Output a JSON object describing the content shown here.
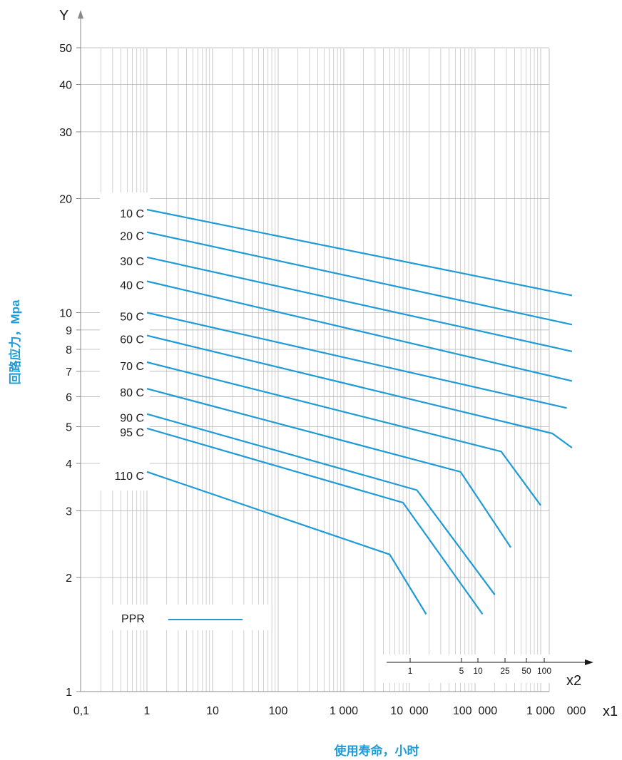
{
  "chart_data": {
    "type": "line",
    "scale": {
      "x": "log",
      "y": "log"
    },
    "xlabel": "使用寿命，小时",
    "ylabel": "回路应力，Mpa",
    "x_axis_letter": "x1",
    "y_axis_letter": "Y",
    "x2_axis_letter": "x2",
    "xlim": [
      0.1,
      3000000
    ],
    "ylim": [
      1,
      50
    ],
    "x_ticks": [
      {
        "v": 0.1,
        "t": "0,1"
      },
      {
        "v": 1,
        "t": "1"
      },
      {
        "v": 10,
        "t": "10"
      },
      {
        "v": 100,
        "t": "100"
      },
      {
        "v": 1000,
        "t": "1 000"
      },
      {
        "v": 10000,
        "t": "10  000"
      },
      {
        "v": 100000,
        "t": "100  000"
      },
      {
        "v": 1000000,
        "t": "1 000"
      },
      {
        "v": 3000000,
        "t": "000"
      }
    ],
    "y_ticks": [
      {
        "v": 1,
        "t": "1"
      },
      {
        "v": 2,
        "t": "2"
      },
      {
        "v": 3,
        "t": "3"
      },
      {
        "v": 4,
        "t": "4"
      },
      {
        "v": 5,
        "t": "5"
      },
      {
        "v": 6,
        "t": "6"
      },
      {
        "v": 7,
        "t": "7"
      },
      {
        "v": 8,
        "t": "8"
      },
      {
        "v": 9,
        "t": "9"
      },
      {
        "v": 10,
        "t": "10"
      },
      {
        "v": 20,
        "t": "20"
      },
      {
        "v": 30,
        "t": "30"
      },
      {
        "v": 40,
        "t": "40"
      },
      {
        "v": 50,
        "t": "50"
      }
    ],
    "x2_ticks": [
      {
        "v": 1,
        "t": "1"
      },
      {
        "v": 5,
        "t": "5"
      },
      {
        "v": 10,
        "t": "10"
      },
      {
        "v": 25,
        "t": "25"
      },
      {
        "v": 50,
        "t": "50"
      },
      {
        "v": 100,
        "t": "100"
      }
    ],
    "legend": {
      "label": "PPR",
      "placement": "bottom-left"
    },
    "grid": true,
    "series": [
      {
        "name": "10 C",
        "points": [
          [
            1,
            18.7
          ],
          [
            3000000,
            11.1
          ]
        ]
      },
      {
        "name": "20 C",
        "points": [
          [
            1,
            16.3
          ],
          [
            3000000,
            9.3
          ]
        ]
      },
      {
        "name": "30 C",
        "points": [
          [
            1,
            14.0
          ],
          [
            3000000,
            7.9
          ]
        ]
      },
      {
        "name": "40 C",
        "points": [
          [
            1,
            12.1
          ],
          [
            3000000,
            6.6
          ]
        ]
      },
      {
        "name": "50 C",
        "points": [
          [
            1,
            10.0
          ],
          [
            2500000,
            5.6
          ]
        ]
      },
      {
        "name": "60 C",
        "points": [
          [
            1,
            8.7
          ],
          [
            1500000,
            4.8
          ],
          [
            3000000,
            4.4
          ]
        ]
      },
      {
        "name": "70 C",
        "points": [
          [
            1,
            7.4
          ],
          [
            250000,
            4.3
          ],
          [
            1000000,
            3.1
          ]
        ]
      },
      {
        "name": "80 C",
        "points": [
          [
            1,
            6.3
          ],
          [
            60000,
            3.8
          ],
          [
            350000,
            2.4
          ]
        ]
      },
      {
        "name": "90 C",
        "points": [
          [
            1,
            5.4
          ],
          [
            13000,
            3.4
          ],
          [
            200000,
            1.8
          ]
        ]
      },
      {
        "name": "95 C",
        "points": [
          [
            1,
            4.95
          ],
          [
            8000,
            3.15
          ],
          [
            130000,
            1.6
          ]
        ]
      },
      {
        "name": "110 C",
        "points": [
          [
            1,
            3.8
          ],
          [
            5000,
            2.3
          ],
          [
            18000,
            1.6
          ]
        ]
      }
    ]
  }
}
